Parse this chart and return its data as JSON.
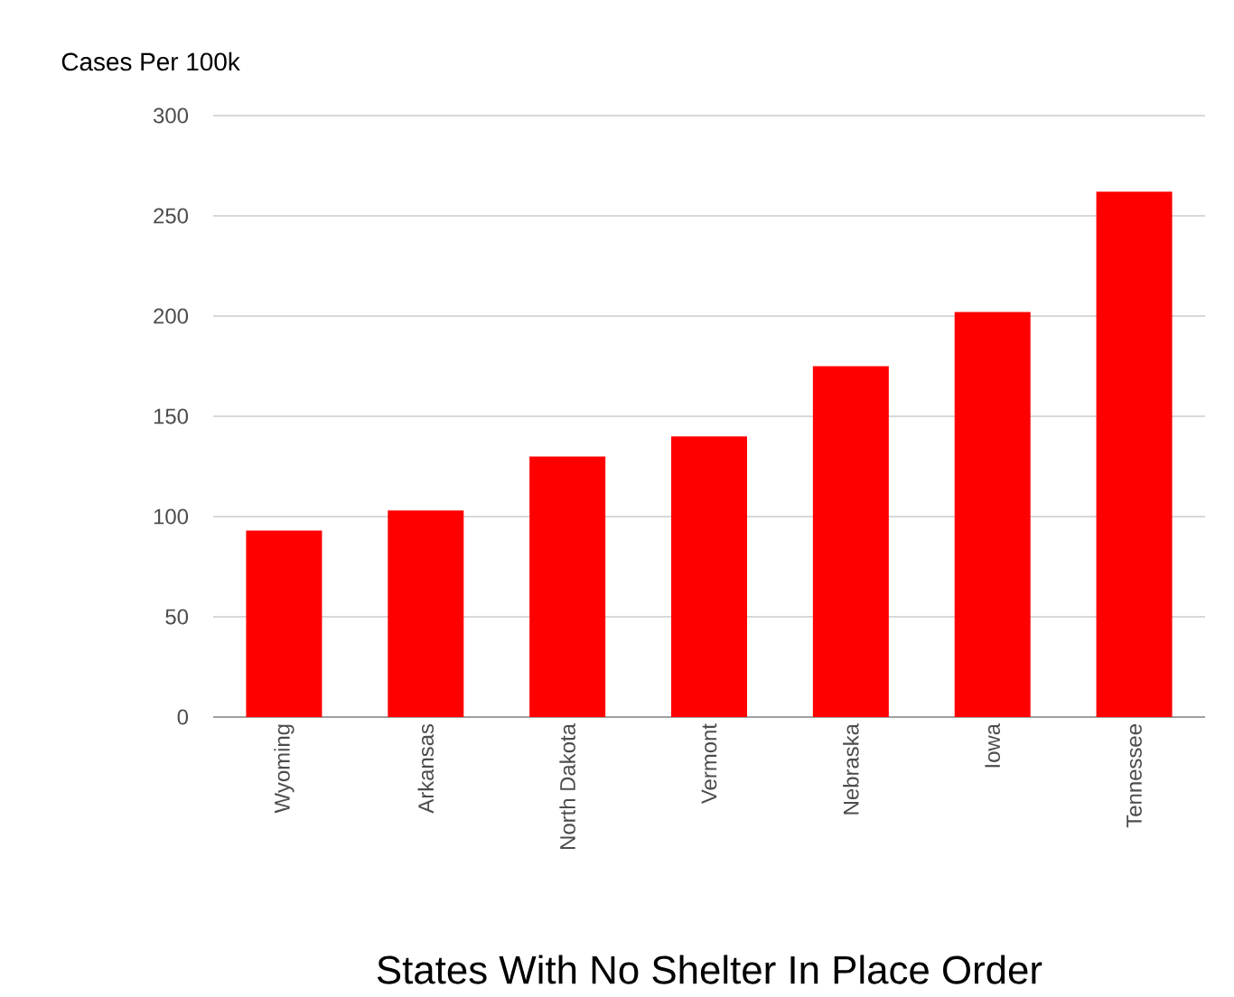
{
  "chart_data": {
    "type": "bar",
    "xlabel": "States With No Shelter In Place Order",
    "ylabel": "Cases Per 100k",
    "categories": [
      "Wyoming",
      "Arkansas",
      "North Dakota",
      "Vermont",
      "Nebraska",
      "Iowa",
      "Tennessee"
    ],
    "values": [
      93,
      103,
      130,
      140,
      175,
      202,
      262
    ],
    "color": "#ff0000",
    "ylim": [
      0,
      300
    ],
    "yticks": [
      0,
      50,
      100,
      150,
      200,
      250,
      300
    ],
    "grid": "y"
  }
}
